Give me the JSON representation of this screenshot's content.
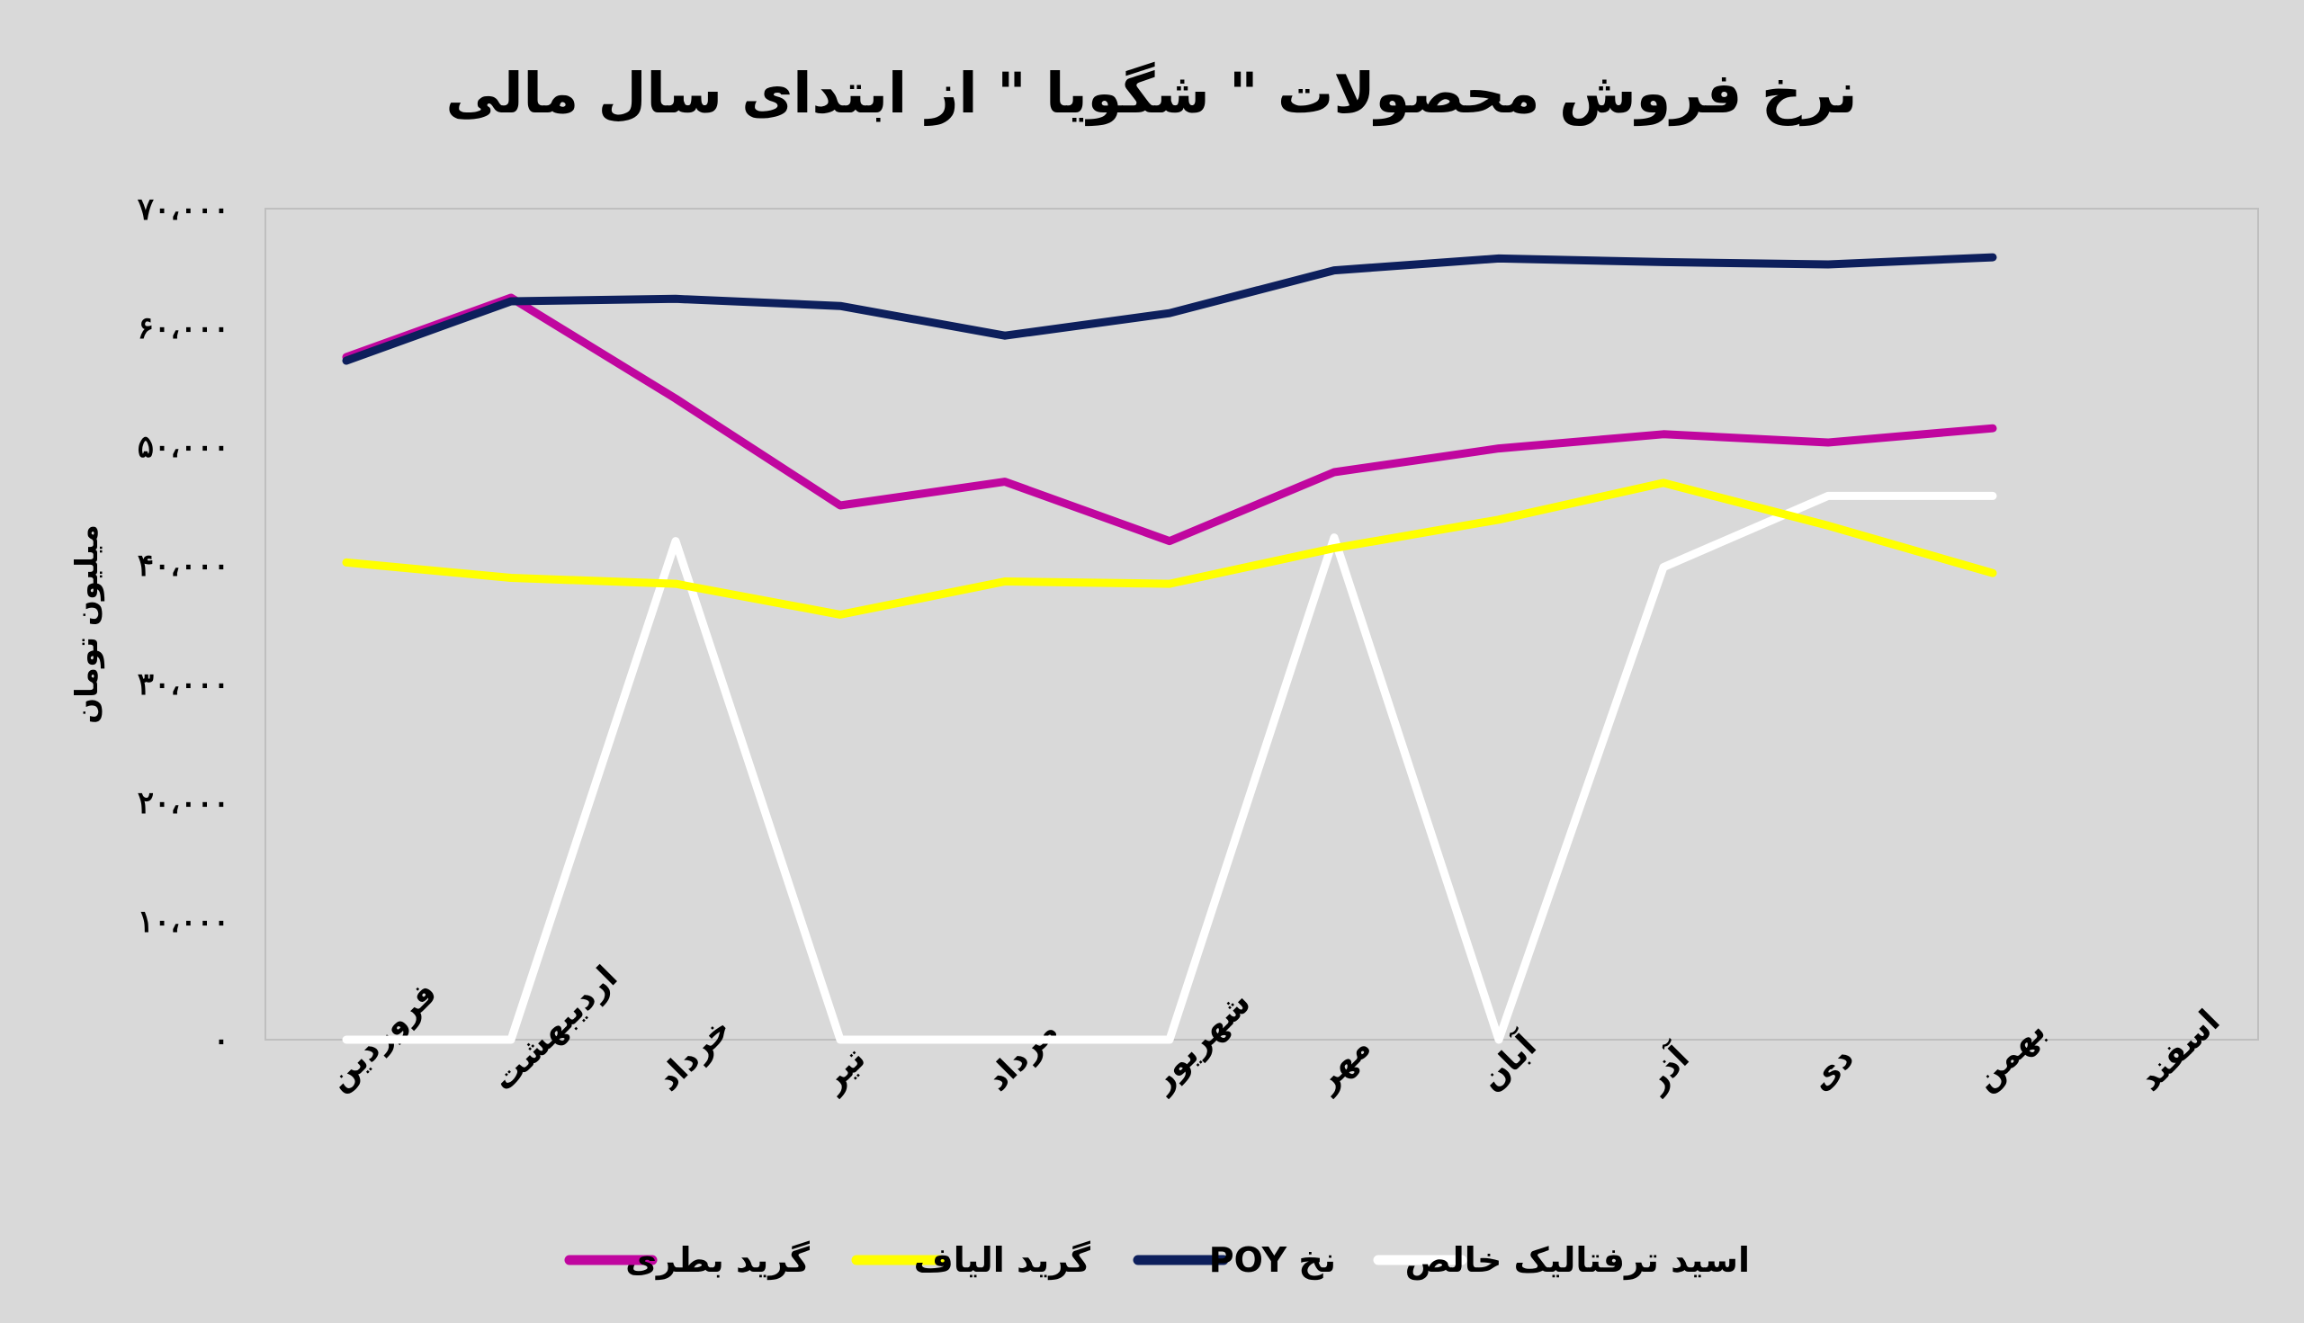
{
  "chart_data": {
    "type": "line",
    "title": "نرخ فروش محصولات \" شگویا \" از ابتدای سال مالی",
    "ylabel": "میلیون تومان",
    "xlabel": "",
    "ylim": [
      0,
      70000
    ],
    "yticks": [
      0,
      10000,
      20000,
      30000,
      40000,
      50000,
      60000,
      70000
    ],
    "ytick_labels": [
      "۰",
      "۱۰،۰۰۰",
      "۲۰،۰۰۰",
      "۳۰،۰۰۰",
      "۴۰،۰۰۰",
      "۵۰،۰۰۰",
      "۶۰،۰۰۰",
      "۷۰،۰۰۰"
    ],
    "categories": [
      "فروردین",
      "اردیبهشت",
      "خرداد",
      "تیر",
      "مرداد",
      "شهریور",
      "مهر",
      "آبان",
      "آذر",
      "دی",
      "بهمن",
      "اسفند"
    ],
    "grid": false,
    "legend_position": "bottom",
    "series": [
      {
        "name": "گرید بطری",
        "color": "#c0069f",
        "values": [
          57500,
          62500,
          54000,
          45000,
          47000,
          42000,
          47800,
          49800,
          51000,
          50300,
          51500,
          null
        ]
      },
      {
        "name": "گرید الیاف",
        "color": "#ffff00",
        "values": [
          40200,
          38900,
          38400,
          35800,
          38600,
          38400,
          41400,
          43800,
          46900,
          43300,
          39300,
          null
        ]
      },
      {
        "name": "نخ POY",
        "color": "#0d1f5c",
        "values": [
          57200,
          62200,
          62400,
          61800,
          59300,
          61200,
          64800,
          65800,
          65500,
          65300,
          65900,
          null
        ]
      },
      {
        "name": "اسید ترفتالیک خالص",
        "color": "#ffffff",
        "values": [
          0,
          0,
          42000,
          0,
          0,
          0,
          42300,
          0,
          39800,
          45800,
          45800,
          null
        ]
      }
    ]
  }
}
